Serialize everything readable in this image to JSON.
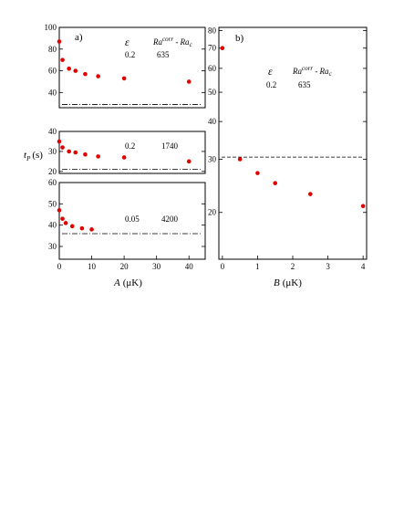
{
  "figure": {
    "y_axis_label": "t",
    "y_axis_label_sub": "P",
    "y_axis_label_unit": "(s)",
    "panel_a_x_label": "A",
    "panel_a_x_unit": "(μK)",
    "panel_b_x_label": "B",
    "panel_b_x_unit": "(μK)"
  },
  "chart_data": [
    {
      "type": "scatter",
      "panel": "a) top",
      "letter": "a)",
      "header_eps": "ε",
      "header_ra": "Ra",
      "header_ra_sup": "corr",
      "header_ra_tail": " - Ra",
      "header_ra_sub": "c",
      "eps": "0.2",
      "ra": "635",
      "x": [
        0,
        1,
        3,
        5,
        8,
        12,
        20,
        40
      ],
      "y": [
        87,
        70,
        62,
        60,
        57,
        55,
        53,
        50
      ],
      "ylim": [
        26,
        100
      ],
      "yticks": [
        40,
        60,
        80,
        100
      ],
      "reference_line": 29,
      "reference_style": "dash-dot",
      "xlim": [
        0,
        45
      ]
    },
    {
      "type": "scatter",
      "panel": "a) middle",
      "eps": "0.2",
      "ra": "1740",
      "x": [
        0,
        1,
        3,
        5,
        8,
        12,
        20,
        40
      ],
      "y": [
        35,
        32,
        30,
        29.5,
        28.5,
        27.5,
        27,
        25
      ],
      "ylim": [
        19,
        40
      ],
      "yticks": [
        20,
        30,
        40
      ],
      "reference_line": 21,
      "reference_style": "dash-dot",
      "xlim": [
        0,
        45
      ]
    },
    {
      "type": "scatter",
      "panel": "a) bottom",
      "eps": "0.05",
      "ra": "4200",
      "x": [
        0,
        1,
        2,
        4,
        7,
        10
      ],
      "y": [
        47,
        43,
        41,
        39.5,
        38.5,
        38
      ],
      "ylim": [
        24,
        60
      ],
      "yticks": [
        30,
        40,
        50,
        60
      ],
      "reference_line": 36,
      "reference_style": "dash-dot",
      "xlabel": "A (μK)",
      "xlim": [
        0,
        45
      ],
      "xticks": [
        0,
        10,
        20,
        30,
        40
      ]
    },
    {
      "type": "scatter",
      "panel": "b)",
      "letter": "b)",
      "header_eps": "ε",
      "header_ra": "Ra",
      "header_ra_sup": "corr",
      "header_ra_tail": " - Ra",
      "header_ra_sub": "c",
      "eps": "0.2",
      "ra": "635",
      "x": [
        0,
        0.5,
        1,
        1.5,
        2.5,
        4
      ],
      "y": [
        70,
        30,
        27,
        25,
        23,
        21
      ],
      "ylim": [
        14,
        82
      ],
      "yscale": "log",
      "yticks": [
        20,
        30,
        40,
        50,
        60,
        70,
        80
      ],
      "reference_line": 30.5,
      "reference_style": "dashed",
      "xlabel": "B (μK)",
      "xlim": [
        -0.1,
        4.1
      ],
      "xticks": [
        0,
        1,
        2,
        3,
        4
      ]
    }
  ]
}
